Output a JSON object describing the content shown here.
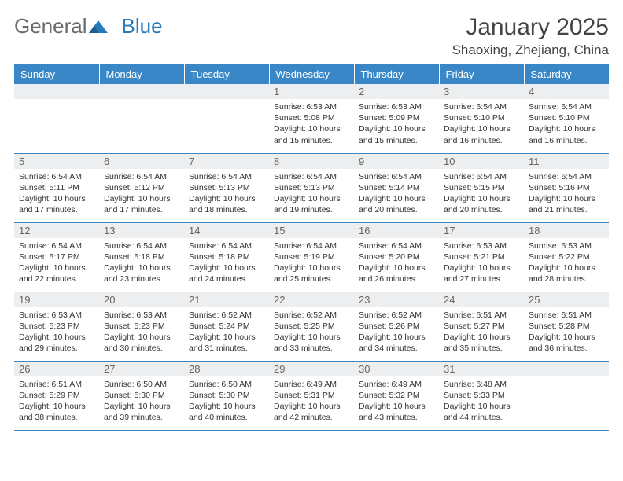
{
  "logo": {
    "text1": "General",
    "text2": "Blue"
  },
  "title": "January 2025",
  "location": "Shaoxing, Zhejiang, China",
  "colors": {
    "header_bg": "#3a87c8",
    "header_fg": "#ffffff",
    "daynum_bg": "#eceef0",
    "border": "#3a87c8",
    "logo_gray": "#6a6a6a",
    "logo_blue": "#2a7ab8"
  },
  "weekdays": [
    "Sunday",
    "Monday",
    "Tuesday",
    "Wednesday",
    "Thursday",
    "Friday",
    "Saturday"
  ],
  "weeks": [
    [
      {
        "n": "",
        "l1": "",
        "l2": "",
        "l3": "",
        "l4": ""
      },
      {
        "n": "",
        "l1": "",
        "l2": "",
        "l3": "",
        "l4": ""
      },
      {
        "n": "",
        "l1": "",
        "l2": "",
        "l3": "",
        "l4": ""
      },
      {
        "n": "1",
        "l1": "Sunrise: 6:53 AM",
        "l2": "Sunset: 5:08 PM",
        "l3": "Daylight: 10 hours",
        "l4": "and 15 minutes."
      },
      {
        "n": "2",
        "l1": "Sunrise: 6:53 AM",
        "l2": "Sunset: 5:09 PM",
        "l3": "Daylight: 10 hours",
        "l4": "and 15 minutes."
      },
      {
        "n": "3",
        "l1": "Sunrise: 6:54 AM",
        "l2": "Sunset: 5:10 PM",
        "l3": "Daylight: 10 hours",
        "l4": "and 16 minutes."
      },
      {
        "n": "4",
        "l1": "Sunrise: 6:54 AM",
        "l2": "Sunset: 5:10 PM",
        "l3": "Daylight: 10 hours",
        "l4": "and 16 minutes."
      }
    ],
    [
      {
        "n": "5",
        "l1": "Sunrise: 6:54 AM",
        "l2": "Sunset: 5:11 PM",
        "l3": "Daylight: 10 hours",
        "l4": "and 17 minutes."
      },
      {
        "n": "6",
        "l1": "Sunrise: 6:54 AM",
        "l2": "Sunset: 5:12 PM",
        "l3": "Daylight: 10 hours",
        "l4": "and 17 minutes."
      },
      {
        "n": "7",
        "l1": "Sunrise: 6:54 AM",
        "l2": "Sunset: 5:13 PM",
        "l3": "Daylight: 10 hours",
        "l4": "and 18 minutes."
      },
      {
        "n": "8",
        "l1": "Sunrise: 6:54 AM",
        "l2": "Sunset: 5:13 PM",
        "l3": "Daylight: 10 hours",
        "l4": "and 19 minutes."
      },
      {
        "n": "9",
        "l1": "Sunrise: 6:54 AM",
        "l2": "Sunset: 5:14 PM",
        "l3": "Daylight: 10 hours",
        "l4": "and 20 minutes."
      },
      {
        "n": "10",
        "l1": "Sunrise: 6:54 AM",
        "l2": "Sunset: 5:15 PM",
        "l3": "Daylight: 10 hours",
        "l4": "and 20 minutes."
      },
      {
        "n": "11",
        "l1": "Sunrise: 6:54 AM",
        "l2": "Sunset: 5:16 PM",
        "l3": "Daylight: 10 hours",
        "l4": "and 21 minutes."
      }
    ],
    [
      {
        "n": "12",
        "l1": "Sunrise: 6:54 AM",
        "l2": "Sunset: 5:17 PM",
        "l3": "Daylight: 10 hours",
        "l4": "and 22 minutes."
      },
      {
        "n": "13",
        "l1": "Sunrise: 6:54 AM",
        "l2": "Sunset: 5:18 PM",
        "l3": "Daylight: 10 hours",
        "l4": "and 23 minutes."
      },
      {
        "n": "14",
        "l1": "Sunrise: 6:54 AM",
        "l2": "Sunset: 5:18 PM",
        "l3": "Daylight: 10 hours",
        "l4": "and 24 minutes."
      },
      {
        "n": "15",
        "l1": "Sunrise: 6:54 AM",
        "l2": "Sunset: 5:19 PM",
        "l3": "Daylight: 10 hours",
        "l4": "and 25 minutes."
      },
      {
        "n": "16",
        "l1": "Sunrise: 6:54 AM",
        "l2": "Sunset: 5:20 PM",
        "l3": "Daylight: 10 hours",
        "l4": "and 26 minutes."
      },
      {
        "n": "17",
        "l1": "Sunrise: 6:53 AM",
        "l2": "Sunset: 5:21 PM",
        "l3": "Daylight: 10 hours",
        "l4": "and 27 minutes."
      },
      {
        "n": "18",
        "l1": "Sunrise: 6:53 AM",
        "l2": "Sunset: 5:22 PM",
        "l3": "Daylight: 10 hours",
        "l4": "and 28 minutes."
      }
    ],
    [
      {
        "n": "19",
        "l1": "Sunrise: 6:53 AM",
        "l2": "Sunset: 5:23 PM",
        "l3": "Daylight: 10 hours",
        "l4": "and 29 minutes."
      },
      {
        "n": "20",
        "l1": "Sunrise: 6:53 AM",
        "l2": "Sunset: 5:23 PM",
        "l3": "Daylight: 10 hours",
        "l4": "and 30 minutes."
      },
      {
        "n": "21",
        "l1": "Sunrise: 6:52 AM",
        "l2": "Sunset: 5:24 PM",
        "l3": "Daylight: 10 hours",
        "l4": "and 31 minutes."
      },
      {
        "n": "22",
        "l1": "Sunrise: 6:52 AM",
        "l2": "Sunset: 5:25 PM",
        "l3": "Daylight: 10 hours",
        "l4": "and 33 minutes."
      },
      {
        "n": "23",
        "l1": "Sunrise: 6:52 AM",
        "l2": "Sunset: 5:26 PM",
        "l3": "Daylight: 10 hours",
        "l4": "and 34 minutes."
      },
      {
        "n": "24",
        "l1": "Sunrise: 6:51 AM",
        "l2": "Sunset: 5:27 PM",
        "l3": "Daylight: 10 hours",
        "l4": "and 35 minutes."
      },
      {
        "n": "25",
        "l1": "Sunrise: 6:51 AM",
        "l2": "Sunset: 5:28 PM",
        "l3": "Daylight: 10 hours",
        "l4": "and 36 minutes."
      }
    ],
    [
      {
        "n": "26",
        "l1": "Sunrise: 6:51 AM",
        "l2": "Sunset: 5:29 PM",
        "l3": "Daylight: 10 hours",
        "l4": "and 38 minutes."
      },
      {
        "n": "27",
        "l1": "Sunrise: 6:50 AM",
        "l2": "Sunset: 5:30 PM",
        "l3": "Daylight: 10 hours",
        "l4": "and 39 minutes."
      },
      {
        "n": "28",
        "l1": "Sunrise: 6:50 AM",
        "l2": "Sunset: 5:30 PM",
        "l3": "Daylight: 10 hours",
        "l4": "and 40 minutes."
      },
      {
        "n": "29",
        "l1": "Sunrise: 6:49 AM",
        "l2": "Sunset: 5:31 PM",
        "l3": "Daylight: 10 hours",
        "l4": "and 42 minutes."
      },
      {
        "n": "30",
        "l1": "Sunrise: 6:49 AM",
        "l2": "Sunset: 5:32 PM",
        "l3": "Daylight: 10 hours",
        "l4": "and 43 minutes."
      },
      {
        "n": "31",
        "l1": "Sunrise: 6:48 AM",
        "l2": "Sunset: 5:33 PM",
        "l3": "Daylight: 10 hours",
        "l4": "and 44 minutes."
      },
      {
        "n": "",
        "l1": "",
        "l2": "",
        "l3": "",
        "l4": ""
      }
    ]
  ]
}
